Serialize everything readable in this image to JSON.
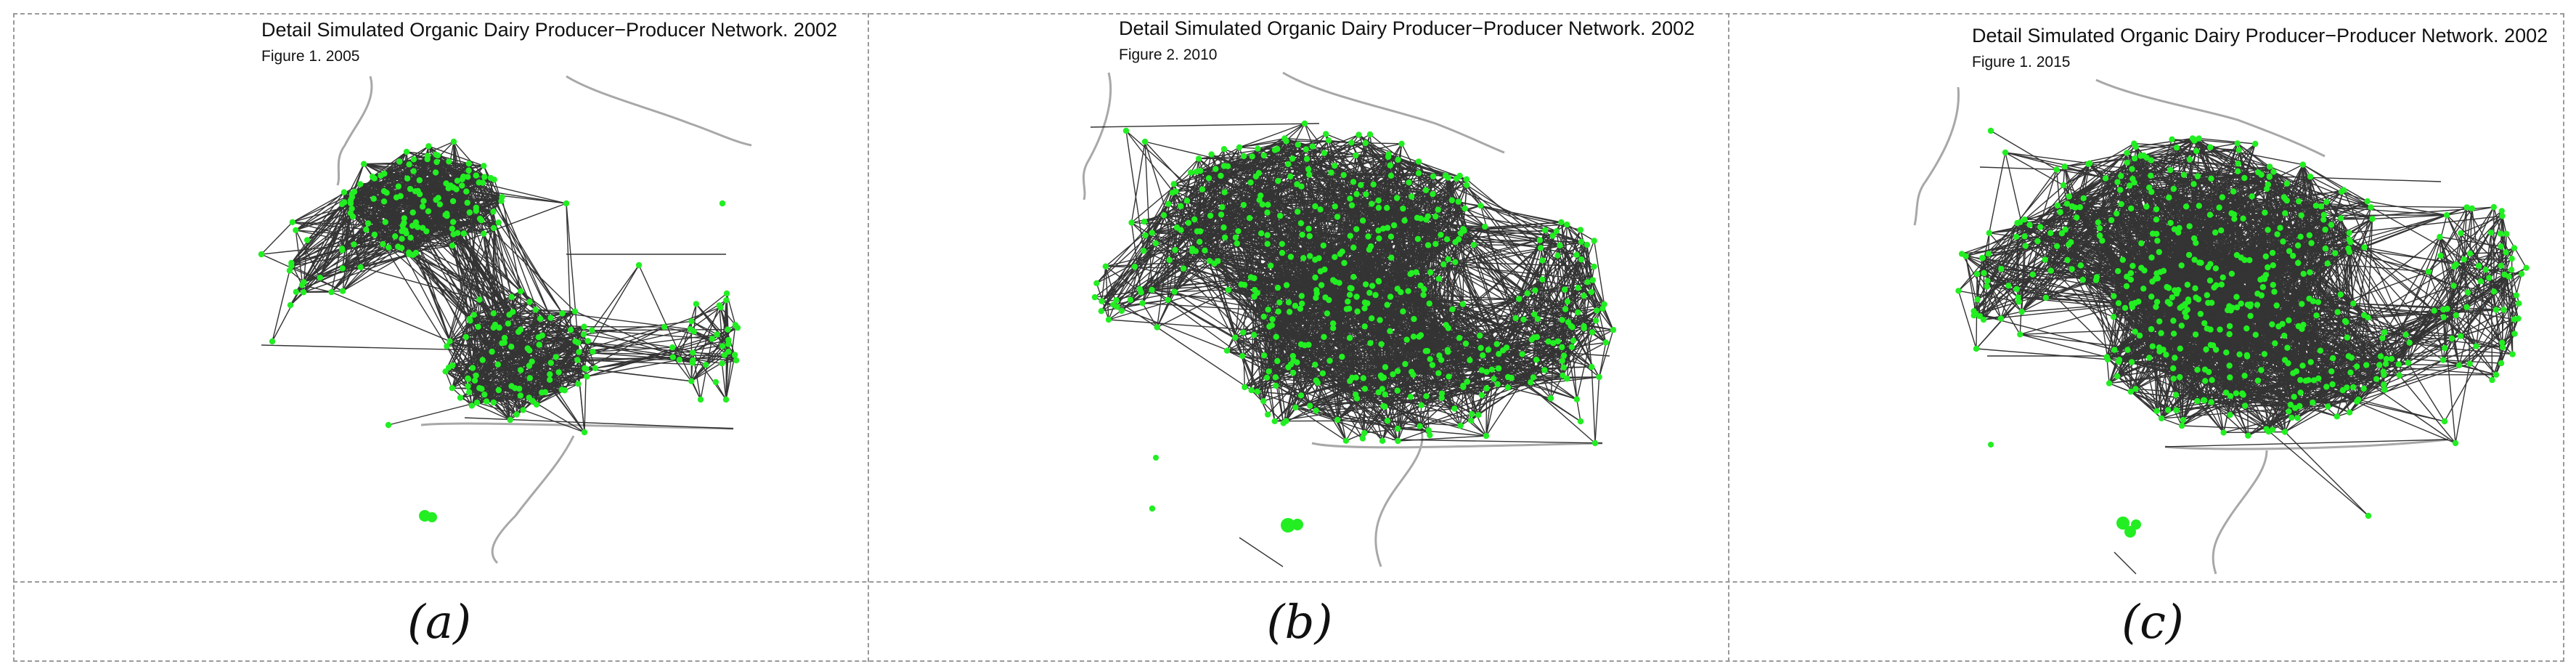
{
  "panels": [
    {
      "title": "Detail Simulated Organic Dairy Producer−Producer Network. 2002",
      "subtitle": "Figure 1. 2005",
      "caption": "(a)"
    },
    {
      "title": "Detail Simulated Organic Dairy Producer−Producer Network. 2002",
      "subtitle": "Figure 2. 2010",
      "caption": "(b)"
    },
    {
      "title": "Detail Simulated Organic Dairy Producer−Producer Network. 2002",
      "subtitle": "Figure 1. 2015",
      "caption": "(c)"
    }
  ],
  "colors": {
    "node": "#22ee22",
    "edge": "#111111",
    "boundary": "#a8a8a8",
    "border": "#9a9a9a"
  }
}
